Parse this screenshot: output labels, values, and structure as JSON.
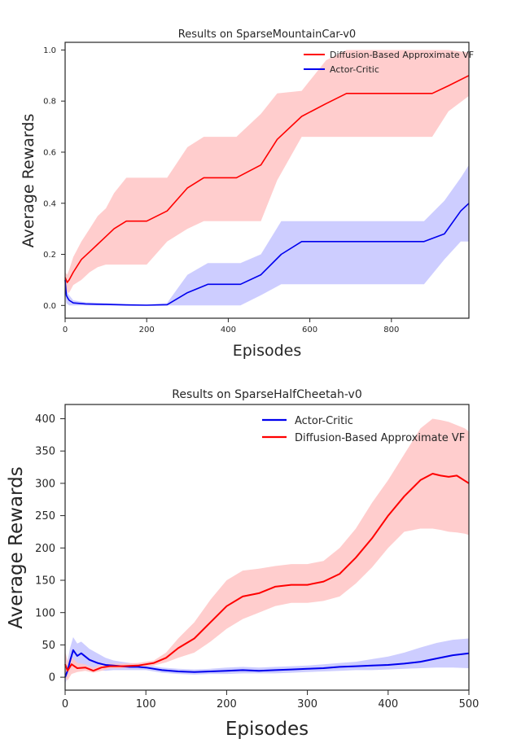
{
  "chart_data": [
    {
      "type": "line",
      "title": "Results on SparseMountainCar-v0",
      "xlabel": "Episodes",
      "ylabel": "Average Rewards",
      "xlim": [
        0,
        990
      ],
      "ylim": [
        -0.05,
        1.03
      ],
      "xticks": [
        0,
        200,
        400,
        600,
        800
      ],
      "xtick_labels": [
        "0",
        "200",
        "400",
        "600",
        "800"
      ],
      "yticks": [
        0.0,
        0.2,
        0.4,
        0.6,
        0.8,
        1.0
      ],
      "ytick_labels": [
        "0.0",
        "0.2",
        "0.4",
        "0.6",
        "0.8",
        "1.0"
      ],
      "legend_position": "top-right",
      "grid": false,
      "series": [
        {
          "name": "Diffusion-Based Approximate VF",
          "color": "#ff0000",
          "band_color": "#ffc8c8",
          "x": [
            0,
            5,
            10,
            20,
            40,
            60,
            80,
            100,
            120,
            150,
            200,
            250,
            300,
            340,
            380,
            420,
            480,
            520,
            580,
            640,
            690,
            750,
            800,
            850,
            900,
            940,
            990
          ],
          "y": [
            0.11,
            0.09,
            0.1,
            0.13,
            0.18,
            0.21,
            0.24,
            0.27,
            0.3,
            0.33,
            0.33,
            0.37,
            0.46,
            0.5,
            0.5,
            0.5,
            0.55,
            0.65,
            0.74,
            0.79,
            0.83,
            0.83,
            0.83,
            0.83,
            0.83,
            0.86,
            0.9
          ],
          "lower": [
            0.07,
            0.05,
            0.05,
            0.08,
            0.1,
            0.13,
            0.15,
            0.16,
            0.16,
            0.16,
            0.16,
            0.25,
            0.3,
            0.33,
            0.33,
            0.33,
            0.33,
            0.49,
            0.66,
            0.66,
            0.66,
            0.66,
            0.66,
            0.66,
            0.66,
            0.76,
            0.82
          ],
          "upper": [
            0.13,
            0.12,
            0.14,
            0.19,
            0.25,
            0.3,
            0.35,
            0.38,
            0.44,
            0.5,
            0.5,
            0.5,
            0.62,
            0.66,
            0.66,
            0.66,
            0.75,
            0.83,
            0.84,
            0.96,
            1.0,
            1.0,
            1.0,
            1.0,
            1.0,
            1.0,
            0.99
          ]
        },
        {
          "name": "Actor-Critic",
          "color": "#0000ee",
          "band_color": "#c8c8ff",
          "x": [
            0,
            3,
            6,
            10,
            20,
            50,
            100,
            150,
            200,
            250,
            300,
            350,
            400,
            430,
            480,
            530,
            580,
            640,
            700,
            760,
            820,
            880,
            930,
            970,
            990
          ],
          "y": [
            0.1,
            0.04,
            0.03,
            0.02,
            0.01,
            0.006,
            0.004,
            0.002,
            0.001,
            0.003,
            0.05,
            0.083,
            0.083,
            0.083,
            0.12,
            0.2,
            0.25,
            0.25,
            0.25,
            0.25,
            0.25,
            0.25,
            0.28,
            0.37,
            0.4
          ],
          "lower": [
            0.05,
            0.01,
            0.005,
            0.0,
            0.0,
            0.0,
            0.0,
            0.0,
            0.0,
            0.0,
            0.0,
            0.0,
            0.0,
            0.0,
            0.04,
            0.083,
            0.083,
            0.083,
            0.083,
            0.083,
            0.083,
            0.083,
            0.18,
            0.25,
            0.25
          ],
          "upper": [
            0.12,
            0.06,
            0.05,
            0.04,
            0.02,
            0.012,
            0.01,
            0.006,
            0.004,
            0.01,
            0.12,
            0.166,
            0.166,
            0.166,
            0.2,
            0.33,
            0.33,
            0.33,
            0.33,
            0.33,
            0.33,
            0.33,
            0.41,
            0.5,
            0.55
          ]
        }
      ]
    },
    {
      "type": "line",
      "title": "Results on SparseHalfCheetah-v0",
      "xlabel": "Episodes",
      "ylabel": "Average Rewards",
      "xlim": [
        0,
        500
      ],
      "ylim": [
        -20,
        422
      ],
      "xticks": [
        0,
        100,
        200,
        300,
        400,
        500
      ],
      "xtick_labels": [
        "0",
        "100",
        "200",
        "300",
        "400",
        "500"
      ],
      "yticks": [
        0,
        50,
        100,
        150,
        200,
        250,
        300,
        350,
        400
      ],
      "ytick_labels": [
        "0",
        "50",
        "100",
        "150",
        "200",
        "250",
        "300",
        "350",
        "400"
      ],
      "legend_position": "top-center",
      "grid": false,
      "series": [
        {
          "name": "Actor-Critic",
          "color": "#0000ee",
          "band_color": "#c8c8ff",
          "x": [
            0,
            3,
            6,
            10,
            15,
            20,
            30,
            40,
            50,
            60,
            70,
            80,
            90,
            100,
            110,
            120,
            140,
            160,
            180,
            200,
            220,
            240,
            260,
            280,
            300,
            320,
            340,
            360,
            380,
            400,
            420,
            440,
            460,
            480,
            500
          ],
          "y": [
            0,
            10,
            25,
            42,
            33,
            37,
            27,
            22,
            19,
            18,
            17,
            16,
            16,
            15,
            13,
            11,
            9,
            8,
            9,
            10,
            11,
            10,
            11,
            12,
            13,
            14,
            16,
            17,
            18,
            19,
            21,
            24,
            29,
            34,
            37
          ],
          "lower": [
            -10,
            0,
            8,
            18,
            14,
            16,
            12,
            11,
            10,
            11,
            11,
            11,
            11,
            11,
            9,
            7,
            5,
            4,
            5,
            5,
            6,
            6,
            6,
            7,
            8,
            9,
            10,
            11,
            11,
            12,
            13,
            14,
            15,
            15,
            14
          ],
          "upper": [
            10,
            25,
            45,
            62,
            52,
            55,
            44,
            37,
            30,
            26,
            24,
            22,
            21,
            19,
            17,
            15,
            13,
            12,
            13,
            15,
            16,
            15,
            16,
            17,
            18,
            20,
            22,
            24,
            28,
            32,
            38,
            46,
            53,
            58,
            60
          ]
        },
        {
          "name": "Diffusion-Based Approximate VF",
          "color": "#ff0000",
          "band_color": "#ffc8c8",
          "x": [
            0,
            3,
            8,
            15,
            25,
            35,
            45,
            55,
            70,
            90,
            110,
            125,
            140,
            160,
            180,
            200,
            220,
            240,
            260,
            280,
            300,
            320,
            340,
            360,
            380,
            400,
            420,
            440,
            455,
            465,
            475,
            485,
            495,
            500
          ],
          "y": [
            20,
            10,
            20,
            14,
            15,
            10,
            15,
            17,
            17,
            18,
            22,
            30,
            45,
            60,
            85,
            110,
            125,
            130,
            140,
            143,
            143,
            148,
            160,
            185,
            215,
            250,
            280,
            305,
            315,
            312,
            310,
            312,
            304,
            300
          ],
          "lower": [
            0,
            -5,
            5,
            8,
            10,
            7,
            10,
            13,
            14,
            15,
            18,
            23,
            30,
            38,
            55,
            75,
            90,
            100,
            110,
            115,
            115,
            118,
            125,
            145,
            170,
            200,
            225,
            230,
            230,
            228,
            225,
            224,
            222,
            220
          ],
          "upper": [
            40,
            25,
            32,
            22,
            20,
            15,
            20,
            21,
            21,
            22,
            26,
            38,
            60,
            85,
            120,
            150,
            165,
            168,
            172,
            175,
            175,
            180,
            200,
            230,
            270,
            305,
            345,
            385,
            400,
            398,
            395,
            390,
            385,
            380
          ]
        }
      ]
    }
  ]
}
